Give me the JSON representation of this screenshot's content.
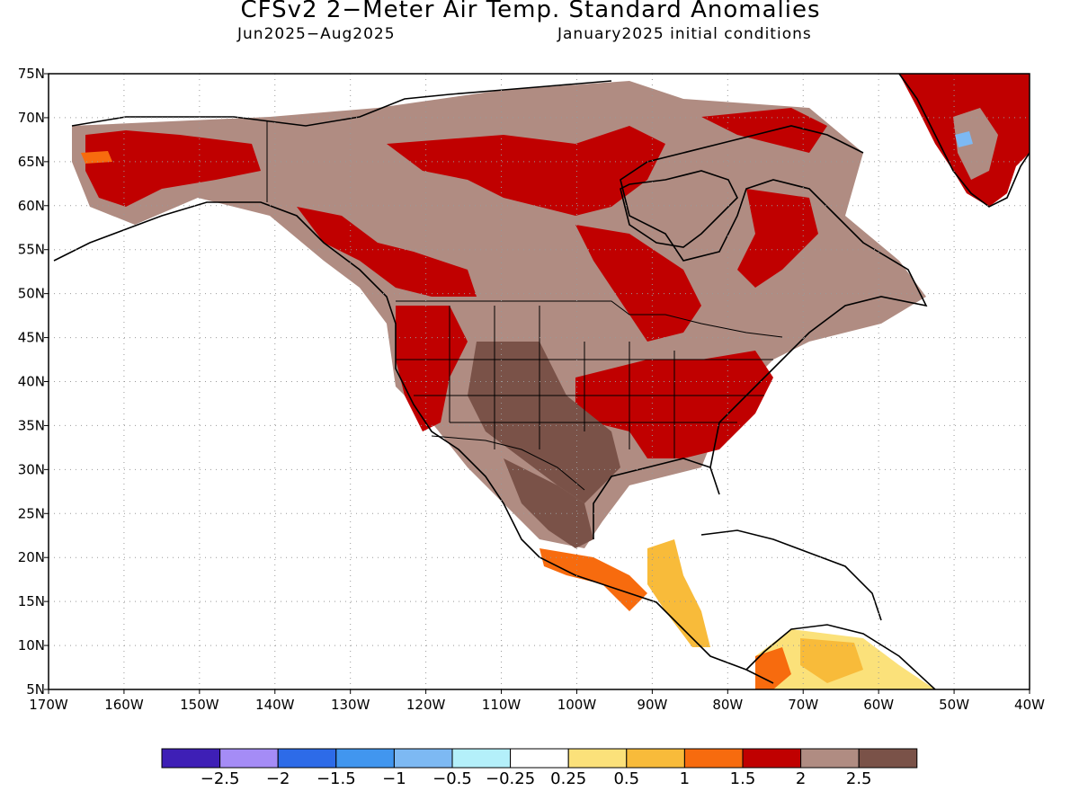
{
  "title": "CFSv2 2−Meter Air Temp. Standard Anomalies",
  "subtitle_left": "Jun2025−Aug2025",
  "subtitle_right": "January2025 initial conditions",
  "y_axis_labels": [
    "75N",
    "70N",
    "65N",
    "60N",
    "55N",
    "50N",
    "45N",
    "40N",
    "35N",
    "30N",
    "25N",
    "20N",
    "15N",
    "10N",
    "5N"
  ],
  "x_axis_labels": [
    "170W",
    "160W",
    "150W",
    "140W",
    "130W",
    "120W",
    "110W",
    "100W",
    "90W",
    "80W",
    "70W",
    "60W",
    "50W",
    "40W"
  ],
  "colorbar": {
    "colors": [
      "#3e1fb6",
      "#a58cf6",
      "#2d6be8",
      "#4196ef",
      "#7db9f3",
      "#b4f0fa",
      "#ffffff",
      "#fbe17a",
      "#f8bb3a",
      "#f76b0e",
      "#c00000",
      "#b08c82",
      "#7a5248"
    ],
    "labels": [
      "−2.5",
      "−2",
      "−1.5",
      "−1",
      "−0.5",
      "−0.25",
      "0.25",
      "0.5",
      "1",
      "1.5",
      "2",
      "2.5"
    ]
  },
  "legend_colors": {
    "very_warm": "#c00000",
    "warm": "#b08c82",
    "hot": "#7a5248",
    "moderate": "#f76b0e",
    "mild": "#f8bb3a",
    "slight": "#fbe17a",
    "cool": "#7db9f3"
  }
}
